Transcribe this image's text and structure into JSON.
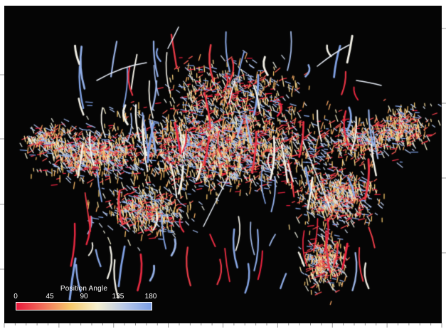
{
  "legend": {
    "title": "Position Angle",
    "ticks": [
      "0",
      "45",
      "90",
      "135",
      "180"
    ],
    "gradient": [
      "#e8193c",
      "#f2705a",
      "#f7c86a",
      "#f5f0d0",
      "#b8c8e8",
      "#7a9ee6"
    ]
  },
  "palette": {
    "background": "#050505",
    "red": "#e8193c",
    "yellow": "#f0d060",
    "white": "#f4f2e8",
    "blue": "#8aa8e8"
  }
}
